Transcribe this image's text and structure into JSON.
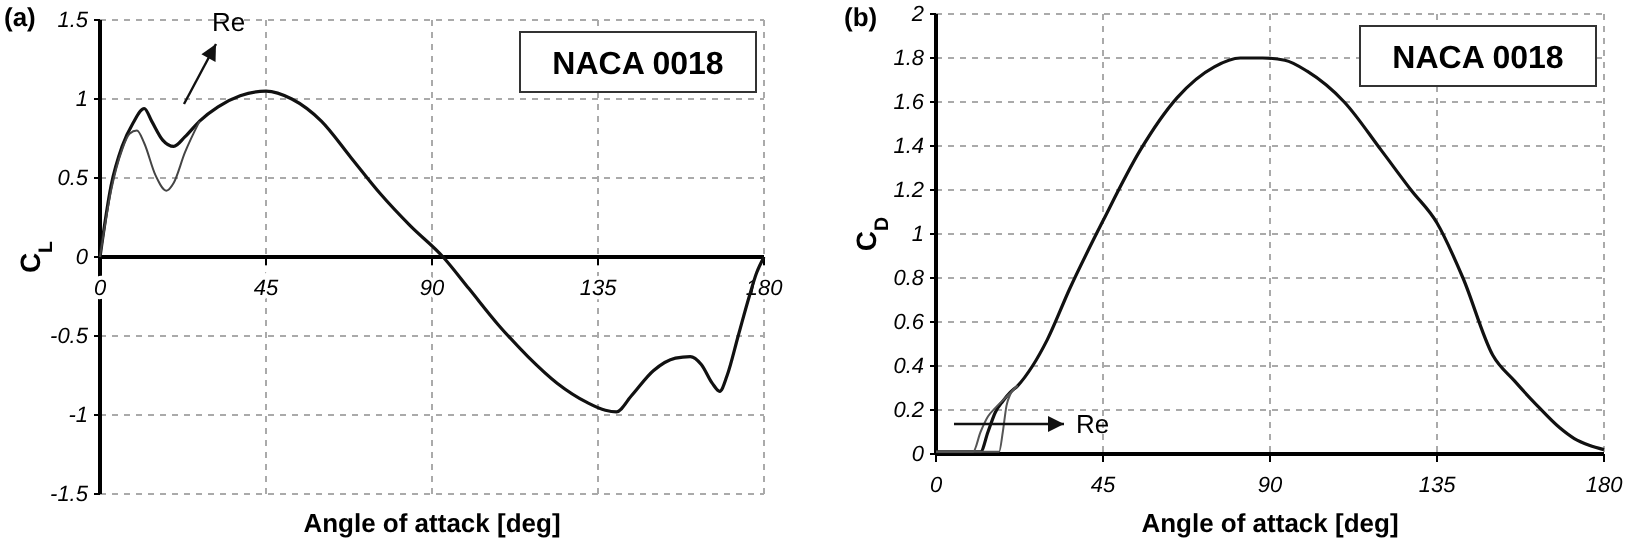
{
  "chart_data": [
    {
      "type": "line",
      "title": "(a)",
      "xlabel": "Angle of attack [deg]",
      "ylabel": "C$_{L}$",
      "xlim": [
        0,
        180
      ],
      "xticks": [
        0,
        45,
        90,
        135,
        180
      ],
      "ylim": [
        -1.5,
        1.5
      ],
      "yticks": [
        -1.5,
        -1,
        -0.5,
        0,
        0.5,
        1,
        1.5
      ],
      "grid": true,
      "line_style": "solid",
      "marker": "none",
      "annotations": [
        "NACA 0018",
        "Re"
      ],
      "series": [
        {
          "color": "#111111",
          "x": [
            0,
            3,
            6,
            9,
            12,
            14,
            17,
            20,
            23,
            27,
            32,
            38,
            45,
            52,
            60,
            68,
            76,
            84,
            93,
            100,
            108,
            116,
            124,
            132,
            137,
            140,
            144,
            150,
            156,
            160,
            163,
            166,
            168,
            170,
            173,
            176,
            178,
            180
          ],
          "values": [
            0,
            0.45,
            0.7,
            0.85,
            0.94,
            0.86,
            0.74,
            0.7,
            0.76,
            0.86,
            0.95,
            1.02,
            1.05,
            1.0,
            0.86,
            0.63,
            0.4,
            0.2,
            0,
            -0.2,
            -0.43,
            -0.63,
            -0.8,
            -0.92,
            -0.97,
            -0.98,
            -0.88,
            -0.72,
            -0.64,
            -0.63,
            -0.68,
            -0.8,
            -0.85,
            -0.75,
            -0.5,
            -0.25,
            -0.1,
            0
          ]
        },
        {
          "color": "#444444",
          "x": [
            0,
            3,
            6,
            8,
            10,
            12,
            15,
            18,
            20,
            23,
            27
          ],
          "values": [
            0,
            0.42,
            0.68,
            0.78,
            0.8,
            0.72,
            0.52,
            0.42,
            0.47,
            0.66,
            0.86
          ]
        }
      ]
    },
    {
      "type": "line",
      "title": "(b)",
      "xlabel": "Angle of attack [deg]",
      "ylabel": "C$_{D}$",
      "xlim": [
        0,
        180
      ],
      "xticks": [
        0,
        45,
        90,
        135,
        180
      ],
      "ylim": [
        0,
        2
      ],
      "yticks": [
        0,
        0.2,
        0.4,
        0.6,
        0.8,
        1,
        1.2,
        1.4,
        1.6,
        1.8,
        2
      ],
      "grid": true,
      "line_style": "solid",
      "marker": "none",
      "annotations": [
        "NACA 0018",
        "Re"
      ],
      "series": [
        {
          "color": "#111111",
          "x": [
            0,
            12,
            14,
            16,
            18,
            20,
            22,
            26,
            30,
            36,
            45,
            55,
            65,
            75,
            82,
            88,
            94,
            100,
            110,
            120,
            128,
            135,
            142,
            150,
            156,
            162,
            168,
            172,
            176,
            180
          ],
          "values": [
            0.01,
            0.01,
            0.1,
            0.19,
            0.24,
            0.28,
            0.31,
            0.4,
            0.52,
            0.75,
            1.06,
            1.38,
            1.62,
            1.76,
            1.8,
            1.8,
            1.79,
            1.74,
            1.6,
            1.38,
            1.2,
            1.05,
            0.8,
            0.45,
            0.33,
            0.22,
            0.12,
            0.07,
            0.04,
            0.02
          ]
        },
        {
          "color": "#555555",
          "x": [
            0,
            10,
            12,
            14,
            16,
            19,
            22
          ],
          "values": [
            0.01,
            0.01,
            0.1,
            0.17,
            0.21,
            0.26,
            0.31
          ]
        },
        {
          "color": "#555555",
          "x": [
            0,
            17,
            18,
            19,
            20,
            22
          ],
          "values": [
            0.01,
            0.01,
            0.1,
            0.22,
            0.27,
            0.31
          ]
        }
      ]
    }
  ]
}
